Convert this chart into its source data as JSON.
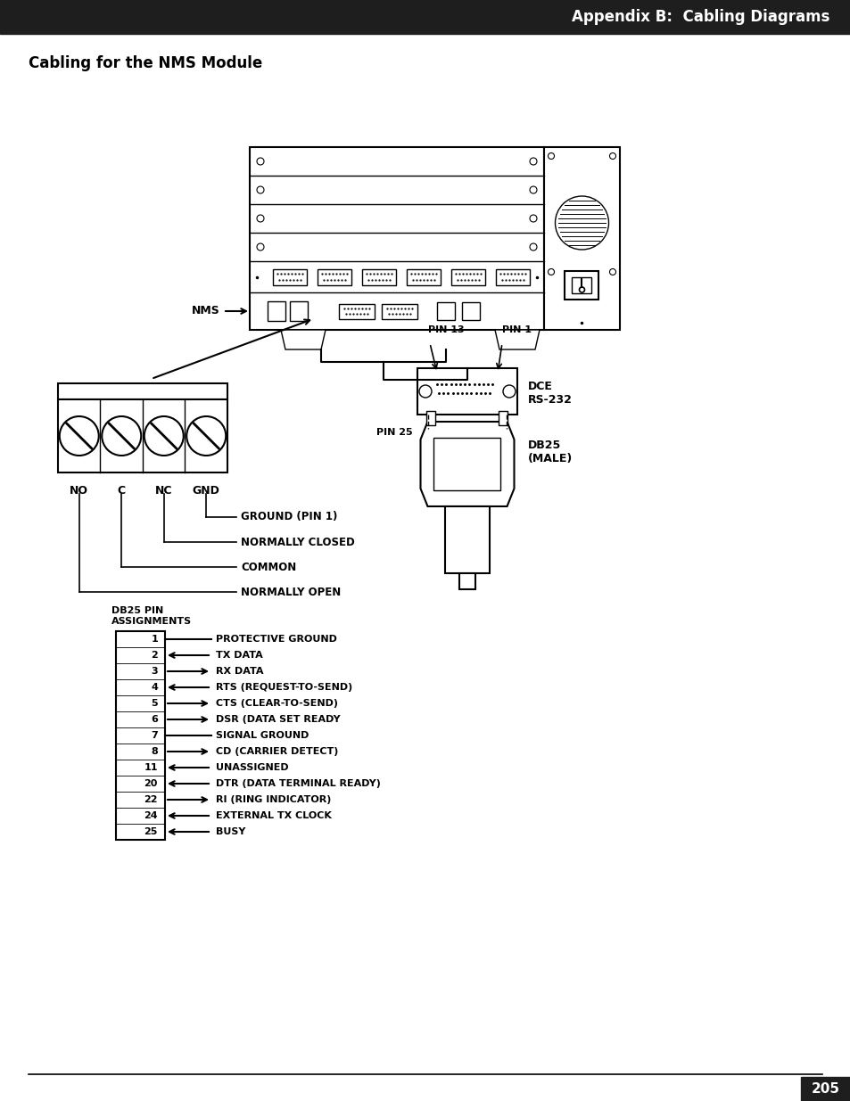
{
  "header_text": "Appendix B:  Cabling Diagrams",
  "header_bg": "#1e1e1e",
  "header_text_color": "#ffffff",
  "section_title": "Cabling for the NMS Module",
  "page_number": "205",
  "bg_color": "#ffffff",
  "text_color": "#000000",
  "pin_assignments_label": "DB25 PIN\nASSIGNMENTS",
  "pins": [
    {
      "pin": "1",
      "label": "PROTECTIVE GROUND",
      "arrow": "none"
    },
    {
      "pin": "2",
      "label": "TX DATA",
      "arrow": "left"
    },
    {
      "pin": "3",
      "label": "RX DATA",
      "arrow": "right"
    },
    {
      "pin": "4",
      "label": "RTS (REQUEST-TO-SEND)",
      "arrow": "left"
    },
    {
      "pin": "5",
      "label": "CTS (CLEAR-TO-SEND)",
      "arrow": "right"
    },
    {
      "pin": "6",
      "label": "DSR (DATA SET READY",
      "arrow": "right"
    },
    {
      "pin": "7",
      "label": "SIGNAL GROUND",
      "arrow": "none"
    },
    {
      "pin": "8",
      "label": "CD (CARRIER DETECT)",
      "arrow": "right"
    },
    {
      "pin": "11",
      "label": "UNASSIGNED",
      "arrow": "left"
    },
    {
      "pin": "20",
      "label": "DTR (DATA TERMINAL READY)",
      "arrow": "left"
    },
    {
      "pin": "22",
      "label": "RI (RING INDICATOR)",
      "arrow": "right"
    },
    {
      "pin": "24",
      "label": "EXTERNAL TX CLOCK",
      "arrow": "left"
    },
    {
      "pin": "25",
      "label": "BUSY",
      "arrow": "left"
    }
  ],
  "relay_labels": [
    "NO",
    "C",
    "NC",
    "GND"
  ],
  "relay_lines": [
    {
      "label": "GROUND (PIN 1)",
      "col": 3
    },
    {
      "label": "NORMALLY CLOSED",
      "col": 2
    },
    {
      "label": "COMMON",
      "col": 1
    },
    {
      "label": "NORMALLY OPEN",
      "col": 0
    }
  ],
  "nms_label": "NMS",
  "dce_label": "DCE\nRS-232",
  "db25_label": "DB25\n(MALE)",
  "pin13_label": "PIN 13",
  "pin1_label": "PIN 1",
  "pin25_label": "PIN 25"
}
